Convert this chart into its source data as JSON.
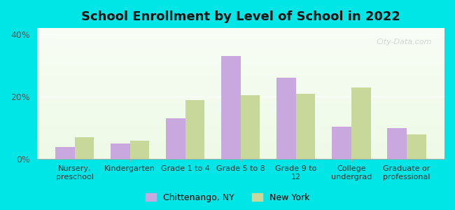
{
  "title": "School Enrollment by Level of School in 2022",
  "categories": [
    "Nursery,\npreschool",
    "Kindergarten",
    "Grade 1 to 4",
    "Grade 5 to 8",
    "Grade 9 to\n12",
    "College\nundergrad",
    "Graduate or\nprofessional"
  ],
  "chittenango": [
    4.0,
    5.0,
    13.0,
    33.0,
    26.0,
    10.5,
    10.0
  ],
  "new_york": [
    7.0,
    6.0,
    19.0,
    20.5,
    21.0,
    23.0,
    8.0
  ],
  "bar_color_chitt": "#c9a8e0",
  "bar_color_ny": "#c8d89a",
  "ylim": [
    0,
    42
  ],
  "yticks": [
    0,
    20,
    40
  ],
  "ytick_labels": [
    "0%",
    "20%",
    "40%"
  ],
  "background_color": "#00e5e5",
  "legend_chitt": "Chittenango, NY",
  "legend_ny": "New York",
  "watermark": "City-Data.com"
}
